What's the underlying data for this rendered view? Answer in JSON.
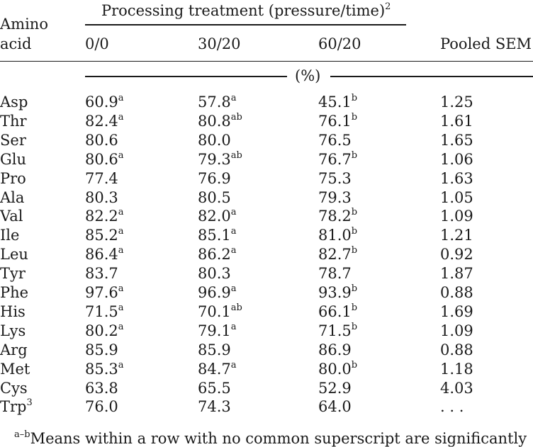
{
  "header": {
    "amino_line1": "Amino",
    "amino_line2": "acid",
    "processing_title": "Processing treatment (pressure/time)",
    "processing_title_sup": "2",
    "col1": "0/0",
    "col2": "30/20",
    "col3": "60/20",
    "pooled": "Pooled SEM",
    "unit": "(%)"
  },
  "rows": [
    {
      "aa": "Asp",
      "aa_sup": "",
      "v1": "60.9",
      "s1": "a",
      "v2": "57.8",
      "s2": "a",
      "v3": "45.1",
      "s3": "b",
      "sem": "1.25"
    },
    {
      "aa": "Thr",
      "aa_sup": "",
      "v1": "82.4",
      "s1": "a",
      "v2": "80.8",
      "s2": "ab",
      "v3": "76.1",
      "s3": "b",
      "sem": "1.61"
    },
    {
      "aa": "Ser",
      "aa_sup": "",
      "v1": "80.6",
      "s1": "",
      "v2": "80.0",
      "s2": "",
      "v3": "76.5",
      "s3": "",
      "sem": "1.65"
    },
    {
      "aa": "Glu",
      "aa_sup": "",
      "v1": "80.6",
      "s1": "a",
      "v2": "79.3",
      "s2": "ab",
      "v3": "76.7",
      "s3": "b",
      "sem": "1.06"
    },
    {
      "aa": "Pro",
      "aa_sup": "",
      "v1": "77.4",
      "s1": "",
      "v2": "76.9",
      "s2": "",
      "v3": "75.3",
      "s3": "",
      "sem": "1.63"
    },
    {
      "aa": "Ala",
      "aa_sup": "",
      "v1": "80.3",
      "s1": "",
      "v2": "80.5",
      "s2": "",
      "v3": "79.3",
      "s3": "",
      "sem": "1.05"
    },
    {
      "aa": "Val",
      "aa_sup": "",
      "v1": "82.2",
      "s1": "a",
      "v2": "82.0",
      "s2": "a",
      "v3": "78.2",
      "s3": "b",
      "sem": "1.09"
    },
    {
      "aa": "Ile",
      "aa_sup": "",
      "v1": "85.2",
      "s1": "a",
      "v2": "85.1",
      "s2": "a",
      "v3": "81.0",
      "s3": "b",
      "sem": "1.21"
    },
    {
      "aa": "Leu",
      "aa_sup": "",
      "v1": "86.4",
      "s1": "a",
      "v2": "86.2",
      "s2": "a",
      "v3": "82.7",
      "s3": "b",
      "sem": "0.92"
    },
    {
      "aa": "Tyr",
      "aa_sup": "",
      "v1": "83.7",
      "s1": "",
      "v2": "80.3",
      "s2": "",
      "v3": "78.7",
      "s3": "",
      "sem": "1.87"
    },
    {
      "aa": "Phe",
      "aa_sup": "",
      "v1": "97.6",
      "s1": "a",
      "v2": "96.9",
      "s2": "a",
      "v3": "93.9",
      "s3": "b",
      "sem": "0.88"
    },
    {
      "aa": "His",
      "aa_sup": "",
      "v1": "71.5",
      "s1": "a",
      "v2": "70.1",
      "s2": "ab",
      "v3": "66.1",
      "s3": "b",
      "sem": "1.69"
    },
    {
      "aa": "Lys",
      "aa_sup": "",
      "v1": "80.2",
      "s1": "a",
      "v2": "79.1",
      "s2": "a",
      "v3": "71.5",
      "s3": "b",
      "sem": "1.09"
    },
    {
      "aa": "Arg",
      "aa_sup": "",
      "v1": "85.9",
      "s1": "",
      "v2": "85.9",
      "s2": "",
      "v3": "86.9",
      "s3": "",
      "sem": "0.88"
    },
    {
      "aa": "Met",
      "aa_sup": "",
      "v1": "85.3",
      "s1": "a",
      "v2": "84.7",
      "s2": "a",
      "v3": "80.0",
      "s3": "b",
      "sem": "1.18"
    },
    {
      "aa": "Cys",
      "aa_sup": "",
      "v1": "63.8",
      "s1": "",
      "v2": "65.5",
      "s2": "",
      "v3": "52.9",
      "s3": "",
      "sem": "4.03"
    },
    {
      "aa": "Trp",
      "aa_sup": "3",
      "v1": "76.0",
      "s1": "",
      "v2": "74.3",
      "s2": "",
      "v3": "64.0",
      "s3": "",
      "sem": ". . ."
    }
  ],
  "footnote": {
    "sup": "a–b",
    "text": "Means within a row with no common superscript are significantly"
  }
}
